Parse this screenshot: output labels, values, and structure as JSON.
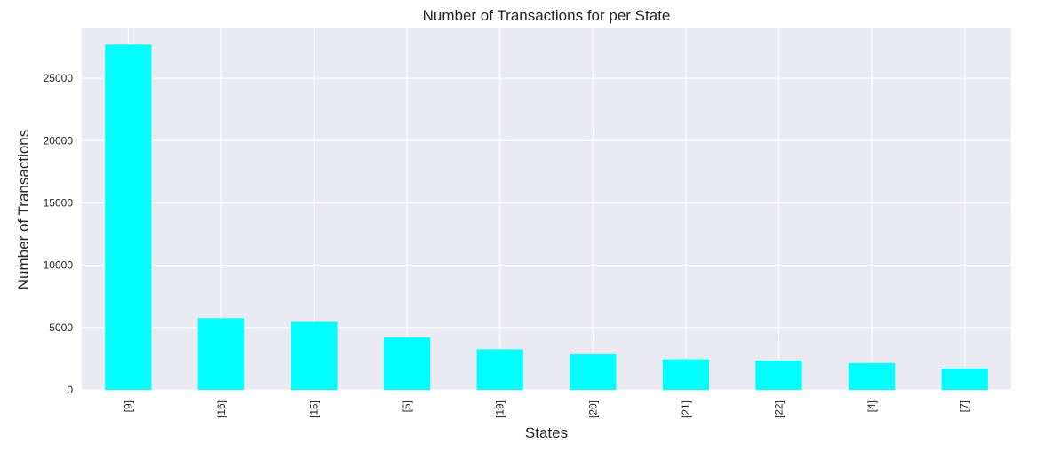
{
  "chart_data": {
    "type": "bar",
    "title": "Number of Transactions for per State",
    "xlabel": "States",
    "ylabel": "Number of Transactions",
    "categories": [
      "[9]",
      "[16]",
      "[15]",
      "[5]",
      "[19]",
      "[20]",
      "[21]",
      "[22]",
      "[4]",
      "[7]"
    ],
    "values": [
      27700,
      5750,
      5450,
      4200,
      3250,
      2850,
      2450,
      2350,
      2150,
      1700
    ],
    "ylim": [
      0,
      29000
    ],
    "yticks": [
      0,
      5000,
      10000,
      15000,
      20000,
      25000
    ],
    "grid": true,
    "colors": {
      "bar": "#00ffff",
      "background": "#eaeaf2",
      "grid": "#ffffff"
    }
  }
}
